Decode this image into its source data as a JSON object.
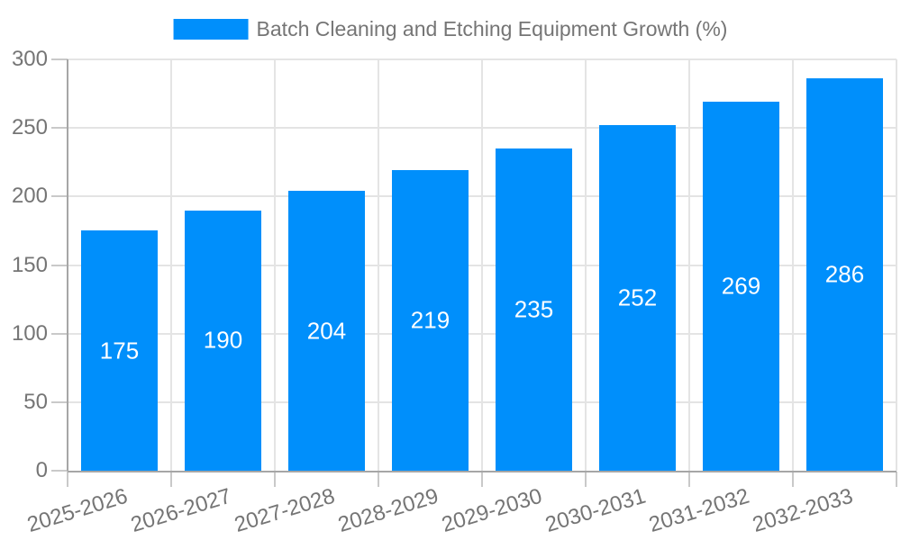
{
  "chart_data": {
    "type": "bar",
    "title": "",
    "legend_label": "Batch Cleaning and Etching Equipment Growth (%)",
    "legend_position": "top",
    "categories": [
      "2025-2026",
      "2026-2027",
      "2027-2028",
      "2028-2029",
      "2029-2030",
      "2030-2031",
      "2031-2032",
      "2032-2033"
    ],
    "values": [
      175,
      190,
      204,
      219,
      235,
      252,
      269,
      286
    ],
    "xlabel": "",
    "ylabel": "",
    "ylim": [
      0,
      300
    ],
    "yticks": [
      0,
      50,
      100,
      150,
      200,
      250,
      300
    ],
    "grid": true,
    "value_labels_shown": true,
    "value_label_position": "inside-middle"
  },
  "colors": {
    "bar": "#008FFB",
    "value_label": "#ffffff",
    "axis_text": "#757575",
    "legend_text": "#757575",
    "gridline": "#e4e4e4",
    "axis_line": "#a6a6a6",
    "tick": "#c9c9c9",
    "background": "#ffffff"
  }
}
